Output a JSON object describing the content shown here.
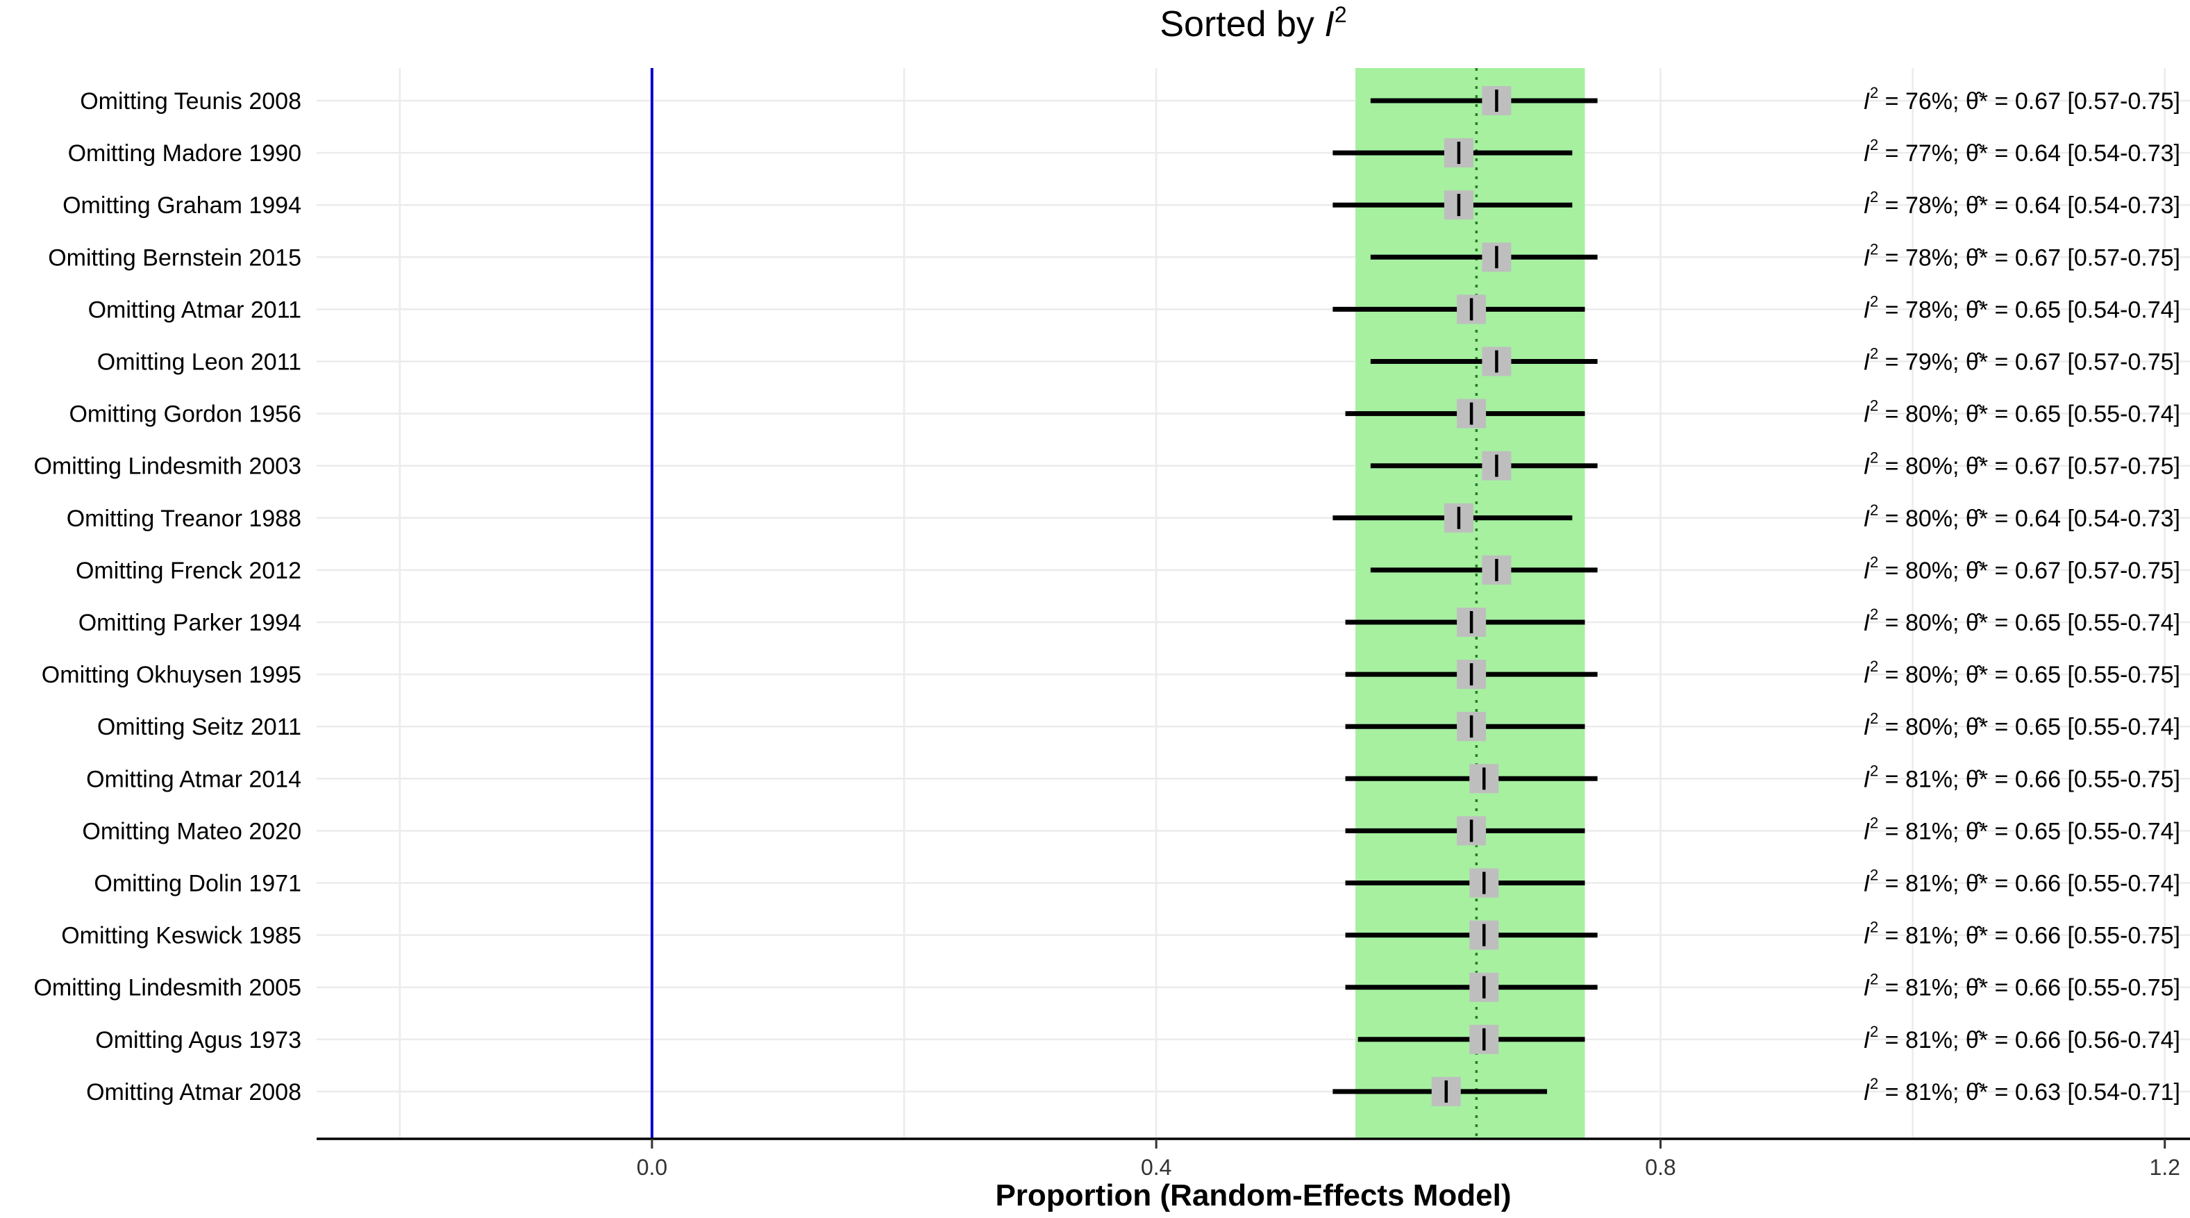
{
  "chart_data": {
    "type": "forest",
    "title": "Sorted by I²",
    "title_main": "Sorted by ",
    "title_italic": "I",
    "title_sup": "2",
    "xlabel": "Proportion (Random-Effects Model)",
    "xlim": [
      -0.266,
      1.22
    ],
    "xticks": [
      0.0,
      0.4,
      0.8,
      1.2
    ],
    "xtick_labels": [
      "0.0",
      "0.4",
      "0.8",
      "1.2"
    ],
    "grid": true,
    "reference_line": {
      "x": 0.0,
      "color": "#0000cc"
    },
    "pooled_estimate": {
      "estimate": 0.654,
      "ci_low": 0.558,
      "ci_high": 0.74,
      "band_color": "#a6f0a0"
    },
    "annotation_equals": " = ",
    "annotation_sep": "; ",
    "theta_symbol": "θ̂*",
    "point_color": "#bebebe",
    "rows": [
      {
        "label": "Omitting Teunis 2008",
        "est": 0.67,
        "lo": 0.57,
        "hi": 0.75,
        "annotation": {
          "i2": "76%",
          "value": "0.67 [0.57-0.75]"
        }
      },
      {
        "label": "Omitting Madore 1990",
        "est": 0.64,
        "lo": 0.54,
        "hi": 0.73,
        "annotation": {
          "i2": "77%",
          "value": "0.64 [0.54-0.73]"
        }
      },
      {
        "label": "Omitting Graham 1994",
        "est": 0.64,
        "lo": 0.54,
        "hi": 0.73,
        "annotation": {
          "i2": "78%",
          "value": "0.64 [0.54-0.73]"
        }
      },
      {
        "label": "Omitting Bernstein 2015",
        "est": 0.67,
        "lo": 0.57,
        "hi": 0.75,
        "annotation": {
          "i2": "78%",
          "value": "0.67 [0.57-0.75]"
        }
      },
      {
        "label": "Omitting Atmar 2011",
        "est": 0.65,
        "lo": 0.54,
        "hi": 0.74,
        "annotation": {
          "i2": "78%",
          "value": "0.65 [0.54-0.74]"
        }
      },
      {
        "label": "Omitting Leon 2011",
        "est": 0.67,
        "lo": 0.57,
        "hi": 0.75,
        "annotation": {
          "i2": "79%",
          "value": "0.67 [0.57-0.75]"
        }
      },
      {
        "label": "Omitting Gordon 1956",
        "est": 0.65,
        "lo": 0.55,
        "hi": 0.74,
        "annotation": {
          "i2": "80%",
          "value": "0.65 [0.55-0.74]"
        }
      },
      {
        "label": "Omitting Lindesmith 2003",
        "est": 0.67,
        "lo": 0.57,
        "hi": 0.75,
        "annotation": {
          "i2": "80%",
          "value": "0.67 [0.57-0.75]"
        }
      },
      {
        "label": "Omitting Treanor 1988",
        "est": 0.64,
        "lo": 0.54,
        "hi": 0.73,
        "annotation": {
          "i2": "80%",
          "value": "0.64 [0.54-0.73]"
        }
      },
      {
        "label": "Omitting Frenck 2012",
        "est": 0.67,
        "lo": 0.57,
        "hi": 0.75,
        "annotation": {
          "i2": "80%",
          "value": "0.67 [0.57-0.75]"
        }
      },
      {
        "label": "Omitting Parker 1994",
        "est": 0.65,
        "lo": 0.55,
        "hi": 0.74,
        "annotation": {
          "i2": "80%",
          "value": "0.65 [0.55-0.74]"
        }
      },
      {
        "label": "Omitting Okhuysen 1995",
        "est": 0.65,
        "lo": 0.55,
        "hi": 0.75,
        "annotation": {
          "i2": "80%",
          "value": "0.65 [0.55-0.75]"
        }
      },
      {
        "label": "Omitting Seitz 2011",
        "est": 0.65,
        "lo": 0.55,
        "hi": 0.74,
        "annotation": {
          "i2": "80%",
          "value": "0.65 [0.55-0.74]"
        }
      },
      {
        "label": "Omitting Atmar 2014",
        "est": 0.66,
        "lo": 0.55,
        "hi": 0.75,
        "annotation": {
          "i2": "81%",
          "value": "0.66 [0.55-0.75]"
        }
      },
      {
        "label": "Omitting Mateo 2020",
        "est": 0.65,
        "lo": 0.55,
        "hi": 0.74,
        "annotation": {
          "i2": "81%",
          "value": "0.65 [0.55-0.74]"
        }
      },
      {
        "label": "Omitting Dolin 1971",
        "est": 0.66,
        "lo": 0.55,
        "hi": 0.74,
        "annotation": {
          "i2": "81%",
          "value": "0.66 [0.55-0.74]"
        }
      },
      {
        "label": "Omitting Keswick 1985",
        "est": 0.66,
        "lo": 0.55,
        "hi": 0.75,
        "annotation": {
          "i2": "81%",
          "value": "0.66 [0.55-0.75]"
        }
      },
      {
        "label": "Omitting Lindesmith 2005",
        "est": 0.66,
        "lo": 0.55,
        "hi": 0.75,
        "annotation": {
          "i2": "81%",
          "value": "0.66 [0.55-0.75]"
        }
      },
      {
        "label": "Omitting Agus 1973",
        "est": 0.66,
        "lo": 0.56,
        "hi": 0.74,
        "annotation": {
          "i2": "81%",
          "value": "0.66 [0.56-0.74]"
        }
      },
      {
        "label": "Omitting Atmar 2008",
        "est": 0.63,
        "lo": 0.54,
        "hi": 0.71,
        "annotation": {
          "i2": "81%",
          "value": "0.63 [0.54-0.71]"
        }
      }
    ]
  }
}
